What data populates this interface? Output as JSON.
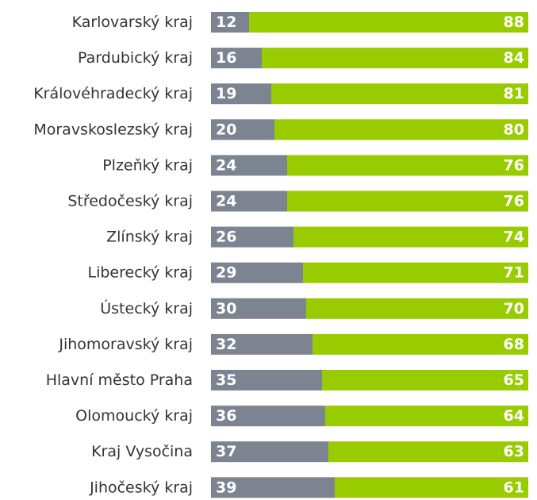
{
  "chart_data": {
    "type": "stacked_bar_horizontal",
    "categories": [
      "Karlovarský kraj",
      "Pardubický kraj",
      "Královéhradecký kraj",
      "Moravskoslezský kraj",
      "Plzeňký kraj",
      "Středočeský kraj",
      "Zlínský kraj",
      "Liberecký kraj",
      "Ústecký kraj",
      "Jihomoravský kraj",
      "Hlavní město Praha",
      "Olomoucký kraj",
      "Kraj Vysočina",
      "Jihočeský kraj"
    ],
    "series": [
      {
        "color": "#7b8490",
        "values": [
          12,
          16,
          19,
          20,
          24,
          24,
          26,
          29,
          30,
          32,
          35,
          36,
          37,
          39
        ]
      },
      {
        "color": "#99cc00",
        "values": [
          88,
          84,
          81,
          80,
          76,
          76,
          74,
          71,
          70,
          68,
          65,
          64,
          63,
          61
        ]
      }
    ],
    "xlim": [
      0,
      100
    ]
  }
}
